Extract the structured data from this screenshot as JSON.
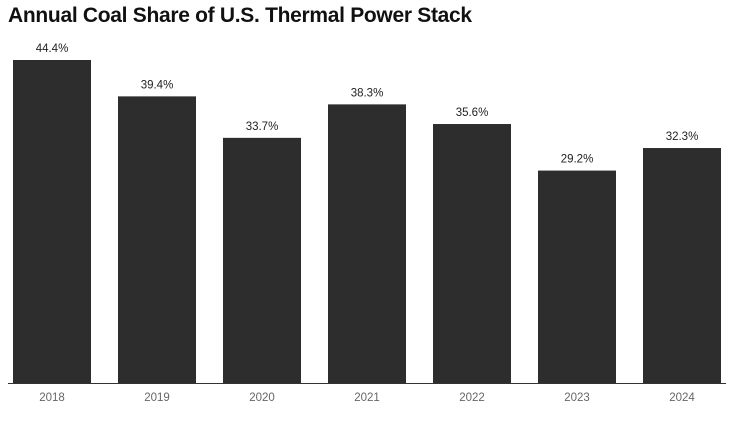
{
  "chart_data": {
    "type": "bar",
    "title": "Annual Coal Share of U.S. Thermal Power Stack",
    "xlabel": "",
    "ylabel": "",
    "categories": [
      "2018",
      "2019",
      "2020",
      "2021",
      "2022",
      "2023",
      "2024"
    ],
    "values": [
      44.4,
      39.4,
      33.7,
      38.3,
      35.6,
      29.2,
      32.3
    ],
    "value_labels": [
      "44.4%",
      "39.4%",
      "33.7%",
      "38.3%",
      "35.6%",
      "29.2%",
      "32.3%"
    ],
    "unit": "%",
    "ylim": [
      0,
      44.4
    ],
    "grid": false,
    "bar_color": "#2d2d2d",
    "axis_color": "#333333"
  }
}
